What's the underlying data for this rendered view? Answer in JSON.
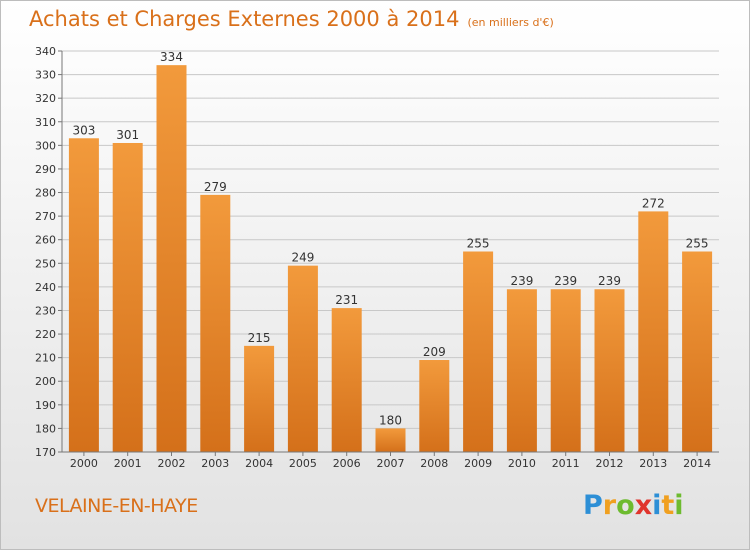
{
  "chart_data": {
    "type": "bar",
    "title": "Achats et Charges Externes 2000 à 2014",
    "subtitle": "(en milliers d'€)",
    "categories": [
      "2000",
      "2001",
      "2002",
      "2003",
      "2004",
      "2005",
      "2006",
      "2007",
      "2008",
      "2009",
      "2010",
      "2011",
      "2012",
      "2013",
      "2014"
    ],
    "values": [
      303,
      301,
      334,
      279,
      215,
      249,
      231,
      180,
      209,
      255,
      239,
      239,
      239,
      272,
      255
    ],
    "ylim": [
      170,
      340
    ],
    "yticks": [
      170,
      180,
      190,
      200,
      210,
      220,
      230,
      240,
      250,
      260,
      270,
      280,
      290,
      300,
      310,
      320,
      330,
      340
    ],
    "grid": true,
    "bar_color": "#f29a3c",
    "bar_color_dark": "#d4701a"
  },
  "commune": "VELAINE-EN-HAYE",
  "logo": {
    "letters": [
      "P",
      "r",
      "o",
      "x",
      "i",
      "t",
      "i"
    ],
    "colors": [
      "#2d8fd6",
      "#f0a020",
      "#6dbb2f",
      "#e0342c",
      "#2d8fd6",
      "#f0a020",
      "#6dbb2f"
    ]
  }
}
